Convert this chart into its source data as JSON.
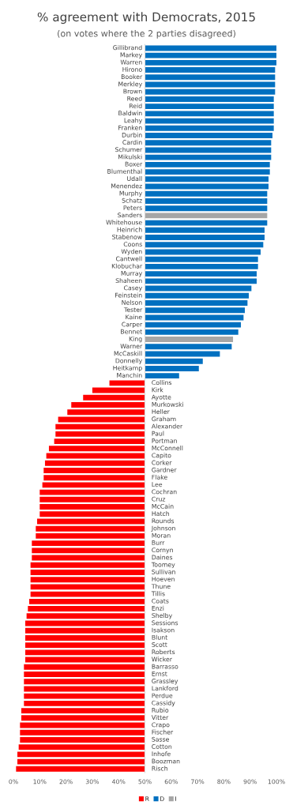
{
  "chart_data": {
    "type": "bar",
    "orientation": "horizontal",
    "title": "% agreement with Democrats, 2015",
    "subtitle": "(on votes where the 2 parties disagreed)",
    "categories": [
      "Gillibrand",
      "Markey",
      "Warren",
      "Hirono",
      "Booker",
      "Merkley",
      "Brown",
      "Reed",
      "Reid",
      "Baldwin",
      "Leahy",
      "Franken",
      "Durbin",
      "Cardin",
      "Schumer",
      "Mikulski",
      "Boxer",
      "Blumenthal",
      "Udall",
      "Menendez",
      "Murphy",
      "Schatz",
      "Peters",
      "Sanders",
      "Whitehouse",
      "Heinrich",
      "Stabenow",
      "Coons",
      "Wyden",
      "Cantwell",
      "Klobuchar",
      "Murray",
      "Shaheen",
      "Casey",
      "Feinstein",
      "Nelson",
      "Tester",
      "Kaine",
      "Carper",
      "Bennet",
      "King",
      "Warner",
      "McCaskill",
      "Donnelly",
      "Heitkamp",
      "Manchin",
      "Collins",
      "Kirk",
      "Ayotte",
      "Murkowski",
      "Heller",
      "Graham",
      "Alexander",
      "Paul",
      "Portman",
      "McConnell",
      "Capito",
      "Corker",
      "Gardner",
      "Flake",
      "Lee",
      "Cochran",
      "Cruz",
      "McCain",
      "Hatch",
      "Rounds",
      "Johnson",
      "Moran",
      "Burr",
      "Cornyn",
      "Daines",
      "Toomey",
      "Sullivan",
      "Hoeven",
      "Thune",
      "Tillis",
      "Coats",
      "Enzi",
      "Shelby",
      "Sessions",
      "Isakson",
      "Blunt",
      "Scott",
      "Roberts",
      "Wicker",
      "Barrasso",
      "Ernst",
      "Grassley",
      "Lankford",
      "Perdue",
      "Cassidy",
      "Rubio",
      "Vitter",
      "Crapo",
      "Fischer",
      "Sasse",
      "Cotton",
      "Inhofe",
      "Boozman",
      "Risch"
    ],
    "series": [
      {
        "name": "R",
        "color": "#ff0000",
        "base": [
          null,
          null,
          null,
          null,
          null,
          null,
          null,
          null,
          null,
          null,
          null,
          null,
          null,
          null,
          null,
          null,
          null,
          null,
          null,
          null,
          null,
          null,
          null,
          null,
          null,
          null,
          null,
          null,
          null,
          null,
          null,
          null,
          null,
          null,
          null,
          null,
          null,
          null,
          null,
          null,
          null,
          null,
          null,
          null,
          null,
          null,
          50,
          50,
          50,
          50,
          50,
          50,
          50,
          50,
          50,
          50,
          50,
          50,
          50,
          50,
          50,
          50,
          50,
          50,
          50,
          50,
          50,
          50,
          50,
          50,
          50,
          50,
          50,
          50,
          50,
          50,
          50,
          50,
          50,
          50,
          50,
          50,
          50,
          50,
          50,
          50,
          50,
          50,
          50,
          50,
          50,
          50,
          50,
          50,
          50,
          50,
          50,
          50,
          50,
          50
        ],
        "values": [
          null,
          null,
          null,
          null,
          null,
          null,
          null,
          null,
          null,
          null,
          null,
          null,
          null,
          null,
          null,
          null,
          null,
          null,
          null,
          null,
          null,
          null,
          null,
          null,
          null,
          null,
          null,
          null,
          null,
          null,
          null,
          null,
          null,
          null,
          null,
          null,
          null,
          null,
          null,
          null,
          null,
          null,
          null,
          null,
          null,
          null,
          -13.5,
          -20,
          -23.5,
          -28,
          -29.5,
          -33,
          -34,
          -34,
          -34.5,
          -36.5,
          -37.5,
          -38,
          -38.5,
          -38.5,
          -39,
          -40,
          -40,
          -40,
          -40,
          -41,
          -41.5,
          -41.5,
          -43,
          -43,
          -43,
          -43.5,
          -43.5,
          -43.5,
          -43.5,
          -43.5,
          -44,
          -44.5,
          -45,
          -45.5,
          -45.5,
          -45.5,
          -45.5,
          -45.5,
          -45.5,
          -46,
          -46,
          -46,
          -46,
          -46,
          -46,
          -47,
          -47,
          -47.5,
          -47.5,
          -47.5,
          -48,
          -48.5,
          -48.5,
          -49
        ]
      },
      {
        "name": "D",
        "color": "#0070c0",
        "base": [
          50,
          50,
          50,
          50,
          50,
          50,
          50,
          50,
          50,
          50,
          50,
          50,
          50,
          50,
          50,
          50,
          50,
          50,
          50,
          50,
          50,
          50,
          50,
          null,
          50,
          50,
          50,
          50,
          50,
          50,
          50,
          50,
          50,
          50,
          50,
          50,
          50,
          50,
          50,
          50,
          null,
          50,
          50,
          50,
          50,
          50,
          null,
          null,
          null,
          null,
          null,
          null,
          null,
          null,
          null,
          null,
          null,
          null,
          null,
          null,
          null,
          null,
          null,
          null,
          null,
          null,
          null,
          null,
          null,
          null,
          null,
          null,
          null,
          null,
          null,
          null,
          null,
          null,
          null,
          null,
          null,
          null,
          null,
          null,
          null,
          null,
          null,
          null,
          null,
          null,
          null,
          null,
          null,
          null,
          null,
          null,
          null,
          null,
          null,
          null
        ],
        "values": [
          50,
          50,
          50,
          49.5,
          49.5,
          49.5,
          49.5,
          49,
          49,
          49,
          49,
          49,
          48.5,
          48,
          48,
          48,
          47.5,
          47.5,
          47,
          47,
          46.5,
          46.5,
          46.5,
          null,
          46.5,
          45.5,
          45.5,
          45,
          44,
          43,
          43,
          42.5,
          42.5,
          40.5,
          39.5,
          39,
          38,
          37.5,
          36.5,
          35.5,
          null,
          33,
          28.5,
          22,
          20.5,
          13,
          null,
          null,
          null,
          null,
          null,
          null,
          null,
          null,
          null,
          null,
          null,
          null,
          null,
          null,
          null,
          null,
          null,
          null,
          null,
          null,
          null,
          null,
          null,
          null,
          null,
          null,
          null,
          null,
          null,
          null,
          null,
          null,
          null,
          null,
          null,
          null,
          null,
          null,
          null,
          null,
          null,
          null,
          null,
          null,
          null,
          null,
          null,
          null,
          null,
          null,
          null,
          null,
          null,
          null
        ]
      },
      {
        "name": "I",
        "color": "#a6a6a6",
        "base": [
          null,
          null,
          null,
          null,
          null,
          null,
          null,
          null,
          null,
          null,
          null,
          null,
          null,
          null,
          null,
          null,
          null,
          null,
          null,
          null,
          null,
          null,
          null,
          50,
          null,
          null,
          null,
          null,
          null,
          null,
          null,
          null,
          null,
          null,
          null,
          null,
          null,
          null,
          null,
          null,
          50,
          null,
          null,
          null,
          null,
          null,
          null,
          null,
          null,
          null,
          null,
          null,
          null,
          null,
          null,
          null,
          null,
          null,
          null,
          null,
          null,
          null,
          null,
          null,
          null,
          null,
          null,
          null,
          null,
          null,
          null,
          null,
          null,
          null,
          null,
          null,
          null,
          null,
          null,
          null,
          null,
          null,
          null,
          null,
          null,
          null,
          null,
          null,
          null,
          null,
          null,
          null,
          null,
          null,
          null,
          null,
          null,
          null,
          null,
          null
        ],
        "values": [
          null,
          null,
          null,
          null,
          null,
          null,
          null,
          null,
          null,
          null,
          null,
          null,
          null,
          null,
          null,
          null,
          null,
          null,
          null,
          null,
          null,
          null,
          null,
          46.5,
          null,
          null,
          null,
          null,
          null,
          null,
          null,
          null,
          null,
          null,
          null,
          null,
          null,
          null,
          null,
          null,
          33.5,
          null,
          null,
          null,
          null,
          null,
          null,
          null,
          null,
          null,
          null,
          null,
          null,
          null,
          null,
          null,
          null,
          null,
          null,
          null,
          null,
          null,
          null,
          null,
          null,
          null,
          null,
          null,
          null,
          null,
          null,
          null,
          null,
          null,
          null,
          null,
          null,
          null,
          null,
          null,
          null,
          null,
          null,
          null,
          null,
          null,
          null,
          null,
          null,
          null,
          null,
          null,
          null,
          null,
          null,
          null,
          null,
          null,
          null,
          null
        ]
      }
    ],
    "xlim": [
      0,
      100
    ],
    "xticks": [
      {
        "value": 0,
        "label": "0%"
      },
      {
        "value": 10,
        "label": "10%"
      },
      {
        "value": 20,
        "label": "20%"
      },
      {
        "value": 30,
        "label": "30%"
      },
      {
        "value": 40,
        "label": "40%"
      },
      {
        "value": 50,
        "label": "50%"
      },
      {
        "value": 60,
        "label": "60%"
      },
      {
        "value": 70,
        "label": "70%"
      },
      {
        "value": 80,
        "label": "80%"
      },
      {
        "value": 90,
        "label": "90%"
      },
      {
        "value": 100,
        "label": "100%"
      }
    ],
    "grid": false,
    "legend": "bottom"
  }
}
